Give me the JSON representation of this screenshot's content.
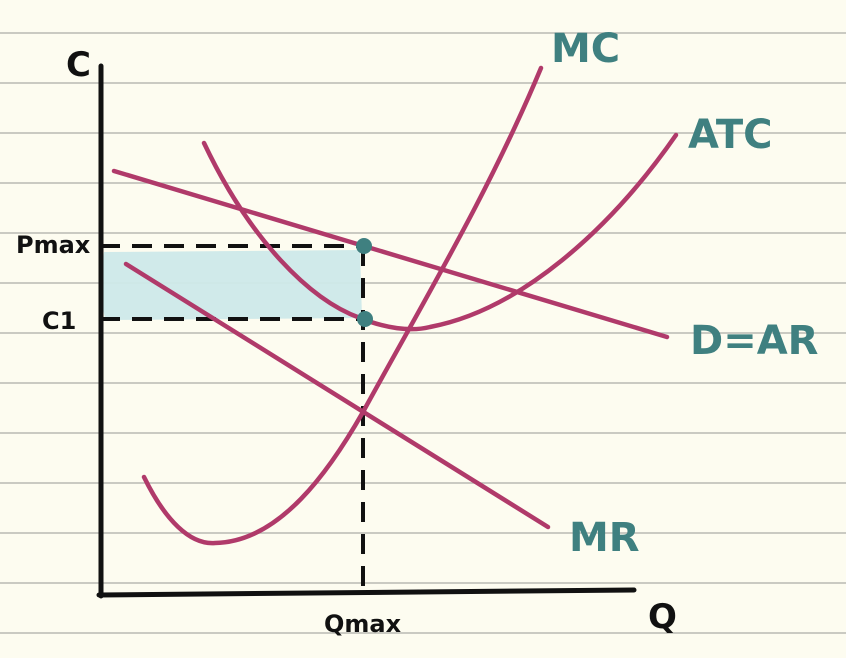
{
  "axes": {
    "y_label": "C",
    "x_label": "Q",
    "tick_pmax": "Pmax",
    "tick_c1": "C1",
    "tick_qmax": "Qmax"
  },
  "curves": {
    "mc": "MC",
    "atc": "ATC",
    "demand": "D=AR",
    "mr": "MR"
  },
  "colors": {
    "background": "#fdfcf0",
    "notebook_line": "#b9b9b3",
    "curve": "#b03a6a",
    "label": "#3f8080",
    "axis": "#111111",
    "shade": "#cde9e9",
    "point": "#3f8080"
  }
}
